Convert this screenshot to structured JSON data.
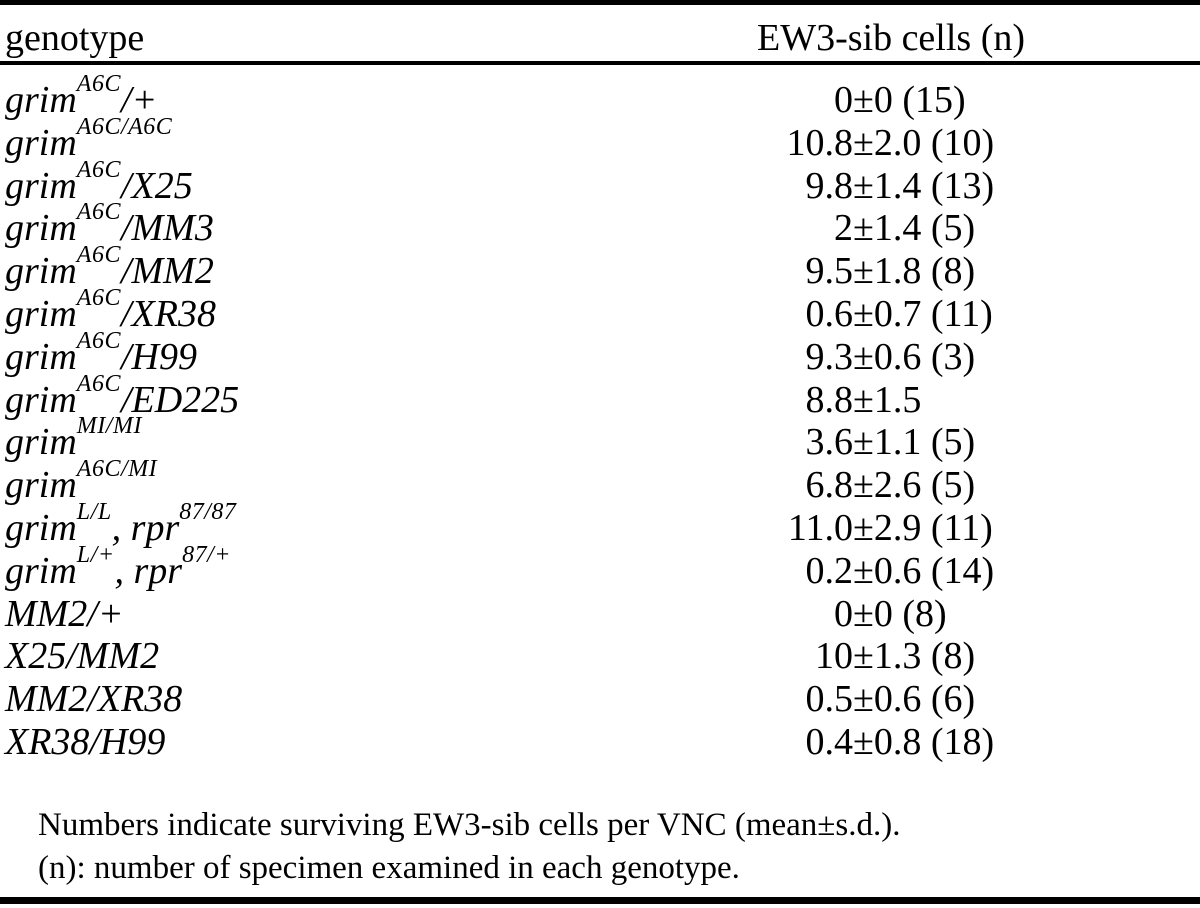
{
  "table": {
    "header": {
      "genotype_label": "genotype",
      "value_label": "EW3-sib cells (n)"
    },
    "rows": [
      {
        "segments": [
          {
            "text": "grim",
            "sup": false
          },
          {
            "text": "A6C",
            "sup": true
          },
          {
            "text": "/+",
            "sup": false
          }
        ],
        "value": "0±0 (15)"
      },
      {
        "segments": [
          {
            "text": "grim",
            "sup": false
          },
          {
            "text": "A6C/A6C",
            "sup": true
          }
        ],
        "value": "10.8±2.0 (10)"
      },
      {
        "segments": [
          {
            "text": "grim",
            "sup": false
          },
          {
            "text": "A6C",
            "sup": true
          },
          {
            "text": "/X25",
            "sup": false
          }
        ],
        "value": "9.8±1.4 (13)"
      },
      {
        "segments": [
          {
            "text": "grim",
            "sup": false
          },
          {
            "text": "A6C",
            "sup": true
          },
          {
            "text": "/MM3",
            "sup": false
          }
        ],
        "value": "2±1.4 (5)"
      },
      {
        "segments": [
          {
            "text": "grim",
            "sup": false
          },
          {
            "text": "A6C",
            "sup": true
          },
          {
            "text": "/MM2",
            "sup": false
          }
        ],
        "value": "9.5±1.8 (8)"
      },
      {
        "segments": [
          {
            "text": "grim",
            "sup": false
          },
          {
            "text": "A6C",
            "sup": true
          },
          {
            "text": "/XR38",
            "sup": false
          }
        ],
        "value": "0.6±0.7 (11)"
      },
      {
        "segments": [
          {
            "text": "grim",
            "sup": false
          },
          {
            "text": "A6C",
            "sup": true
          },
          {
            "text": "/H99",
            "sup": false
          }
        ],
        "value": "9.3±0.6 (3)"
      },
      {
        "segments": [
          {
            "text": "grim",
            "sup": false
          },
          {
            "text": "A6C",
            "sup": true
          },
          {
            "text": "/ED225",
            "sup": false
          }
        ],
        "value": "8.8±1.5"
      },
      {
        "segments": [
          {
            "text": "grim",
            "sup": false
          },
          {
            "text": "MI/MI",
            "sup": true
          }
        ],
        "value": "3.6±1.1 (5)"
      },
      {
        "segments": [
          {
            "text": "grim",
            "sup": false
          },
          {
            "text": "A6C/MI",
            "sup": true
          }
        ],
        "value": "6.8±2.6 (5)"
      },
      {
        "segments": [
          {
            "text": "grim",
            "sup": false
          },
          {
            "text": "L/L",
            "sup": true
          },
          {
            "text": ", rpr",
            "sup": false
          },
          {
            "text": "87/87",
            "sup": true
          }
        ],
        "value": "11.0±2.9 (11)"
      },
      {
        "segments": [
          {
            "text": "grim",
            "sup": false
          },
          {
            "text": "L/+",
            "sup": true
          },
          {
            "text": ", rpr",
            "sup": false
          },
          {
            "text": "87/+",
            "sup": true
          }
        ],
        "value": "0.2±0.6 (14)"
      },
      {
        "segments": [
          {
            "text": "MM2/+",
            "sup": false
          }
        ],
        "value": "0±0 (8)"
      },
      {
        "segments": [
          {
            "text": "X25/MM2",
            "sup": false
          }
        ],
        "value": "10±1.3 (8)"
      },
      {
        "segments": [
          {
            "text": "MM2/XR38",
            "sup": false
          }
        ],
        "value": "0.5±0.6 (6)"
      },
      {
        "segments": [
          {
            "text": "XR38/H99",
            "sup": false
          }
        ],
        "value": "0.4±0.8 (18)"
      }
    ]
  },
  "footnote": {
    "line1": "Numbers indicate surviving EW3-sib cells per VNC (mean±s.d.).",
    "line2": "(n): number of specimen examined in each genotype."
  }
}
